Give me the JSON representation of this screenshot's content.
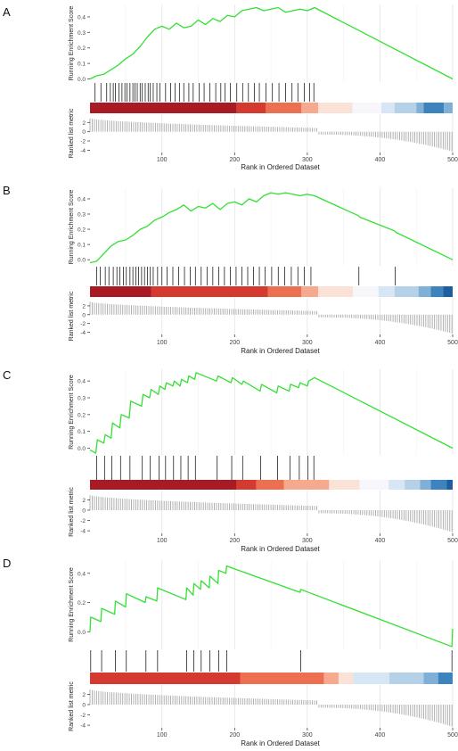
{
  "figure": {
    "panel_letters": [
      "A",
      "B",
      "C",
      "D"
    ],
    "es_ylabel": "Running Enrichment Score",
    "rank_ylabel": "Ranked list metric",
    "xlabel": "Rank in Ordered Dataset"
  },
  "colors": {
    "es_line": "#33e033",
    "hits": "#000000",
    "grid": "#e4e4e4",
    "metric_bars": "#a8a8a8",
    "red_dark": "#a81b25",
    "red": "#d43a30",
    "red_mid": "#ec6f52",
    "red_light": "#f6a98e",
    "neutral_light": "#fbe2d6",
    "white": "#f7f7fb",
    "blue_pale": "#d7e6f4",
    "blue_light": "#b5d1e8",
    "blue_mid": "#7fb0d7",
    "blue": "#3d84bf",
    "blue_dark": "#1e5e9e"
  },
  "chart_data": [
    {
      "type": "line",
      "panel": "A",
      "xlim": [
        1,
        500
      ],
      "ylim_es": [
        -0.02,
        0.48
      ],
      "y_ticks": [
        0.0,
        0.1,
        0.2,
        0.3,
        0.4
      ],
      "x_ticks": [
        100,
        200,
        300,
        400,
        500
      ],
      "rank_y_ticks": [
        2,
        0,
        -2,
        -4
      ],
      "xlabel": "Rank in Ordered Dataset",
      "ylabel_es": "Running Enrichment Score",
      "ylabel_rank": "Ranked list metric",
      "running_es": {
        "x": [
          1,
          10,
          20,
          30,
          40,
          50,
          60,
          70,
          80,
          90,
          100,
          110,
          120,
          130,
          140,
          150,
          160,
          170,
          180,
          190,
          200,
          210,
          220,
          230,
          240,
          250,
          260,
          270,
          280,
          290,
          300,
          310,
          500
        ],
        "y": [
          0.0,
          0.02,
          0.03,
          0.06,
          0.09,
          0.13,
          0.16,
          0.21,
          0.27,
          0.32,
          0.34,
          0.32,
          0.36,
          0.33,
          0.34,
          0.38,
          0.35,
          0.39,
          0.37,
          0.41,
          0.4,
          0.44,
          0.45,
          0.46,
          0.44,
          0.45,
          0.46,
          0.43,
          0.44,
          0.45,
          0.44,
          0.46,
          0.0
        ]
      },
      "hits": [
        8,
        16,
        24,
        29,
        33,
        36,
        41,
        45,
        49,
        52,
        56,
        60,
        63,
        66,
        70,
        73,
        77,
        81,
        84,
        88,
        93,
        97,
        105,
        112,
        118,
        124,
        130,
        137,
        143,
        151,
        158,
        166,
        174,
        181,
        187,
        194,
        203,
        211,
        219,
        227,
        234,
        243,
        252,
        261,
        270,
        279,
        287,
        296,
        303,
        309
      ],
      "heatmap": [
        {
          "from": 1,
          "to": 203,
          "color": "red_dark"
        },
        {
          "from": 203,
          "to": 243,
          "color": "red"
        },
        {
          "from": 243,
          "to": 292,
          "color": "red_mid"
        },
        {
          "from": 292,
          "to": 315,
          "color": "red_light"
        },
        {
          "from": 315,
          "to": 362,
          "color": "neutral_light"
        },
        {
          "from": 362,
          "to": 402,
          "color": "white"
        },
        {
          "from": 402,
          "to": 420,
          "color": "blue_pale"
        },
        {
          "from": 420,
          "to": 450,
          "color": "blue_light"
        },
        {
          "from": 450,
          "to": 460,
          "color": "blue_mid"
        },
        {
          "from": 460,
          "to": 488,
          "color": "blue"
        },
        {
          "from": 488,
          "to": 500,
          "color": "blue_mid"
        }
      ],
      "ranked_metric": {
        "pos_start": 3.0,
        "pos_end": 0.8,
        "split": 315,
        "neg_start": -0.6,
        "neg_end": -4.3,
        "ylim": [
          -4.5,
          3.8
        ]
      }
    },
    {
      "type": "line",
      "panel": "B",
      "xlim": [
        1,
        500
      ],
      "ylim_es": [
        -0.04,
        0.47
      ],
      "y_ticks": [
        0.0,
        0.1,
        0.2,
        0.3,
        0.4
      ],
      "x_ticks": [
        100,
        200,
        300,
        400,
        500
      ],
      "rank_y_ticks": [
        2,
        0,
        -2,
        -4
      ],
      "xlabel": "Rank in Ordered Dataset",
      "ylabel_es": "Running Enrichment Score",
      "ylabel_rank": "Ranked list metric",
      "running_es": {
        "x": [
          1,
          10,
          20,
          30,
          40,
          50,
          60,
          70,
          80,
          90,
          100,
          110,
          120,
          130,
          140,
          150,
          160,
          170,
          180,
          190,
          200,
          210,
          220,
          230,
          240,
          250,
          260,
          270,
          280,
          290,
          300,
          310,
          370,
          372,
          420,
          422,
          500
        ],
        "y": [
          -0.02,
          -0.01,
          0.04,
          0.09,
          0.12,
          0.13,
          0.16,
          0.2,
          0.22,
          0.26,
          0.28,
          0.31,
          0.33,
          0.36,
          0.32,
          0.35,
          0.34,
          0.37,
          0.33,
          0.37,
          0.38,
          0.36,
          0.4,
          0.38,
          0.42,
          0.44,
          0.43,
          0.44,
          0.43,
          0.42,
          0.43,
          0.42,
          0.29,
          0.28,
          0.19,
          0.18,
          0.0
        ]
      },
      "hits": [
        10,
        15,
        22,
        27,
        33,
        38,
        42,
        47,
        51,
        56,
        60,
        64,
        68,
        72,
        76,
        80,
        84,
        88,
        94,
        100,
        107,
        115,
        123,
        131,
        139,
        146,
        154,
        162,
        170,
        178,
        186,
        194,
        202,
        210,
        218,
        226,
        234,
        242,
        251,
        260,
        269,
        278,
        287,
        296,
        305,
        371,
        421
      ],
      "heatmap": [
        {
          "from": 1,
          "to": 85,
          "color": "red_dark"
        },
        {
          "from": 85,
          "to": 246,
          "color": "red"
        },
        {
          "from": 246,
          "to": 292,
          "color": "red_mid"
        },
        {
          "from": 292,
          "to": 315,
          "color": "red_light"
        },
        {
          "from": 315,
          "to": 363,
          "color": "neutral_light"
        },
        {
          "from": 363,
          "to": 398,
          "color": "white"
        },
        {
          "from": 398,
          "to": 420,
          "color": "blue_pale"
        },
        {
          "from": 420,
          "to": 453,
          "color": "blue_light"
        },
        {
          "from": 453,
          "to": 470,
          "color": "blue_mid"
        },
        {
          "from": 470,
          "to": 487,
          "color": "blue"
        },
        {
          "from": 487,
          "to": 500,
          "color": "blue_dark"
        }
      ],
      "ranked_metric": {
        "pos_start": 3.0,
        "pos_end": 0.8,
        "split": 315,
        "neg_start": -0.6,
        "neg_end": -4.3,
        "ylim": [
          -4.5,
          3.8
        ]
      }
    },
    {
      "type": "line",
      "panel": "C",
      "xlim": [
        1,
        500
      ],
      "ylim_es": [
        -0.04,
        0.47
      ],
      "y_ticks": [
        0.0,
        0.1,
        0.2,
        0.3,
        0.4
      ],
      "x_ticks": [
        100,
        200,
        300,
        400,
        500
      ],
      "rank_y_ticks": [
        2,
        0,
        -2,
        -4
      ],
      "xlabel": "Rank in Ordered Dataset",
      "ylabel_es": "Running Enrichment Score",
      "ylabel_rank": "Ranked list metric",
      "running_es": {
        "x": [
          1,
          9,
          11,
          20,
          22,
          30,
          32,
          42,
          44,
          55,
          57,
          72,
          74,
          83,
          85,
          95,
          97,
          104,
          106,
          115,
          117,
          125,
          127,
          135,
          137,
          145,
          147,
          175,
          177,
          195,
          197,
          210,
          212,
          235,
          237,
          258,
          260,
          275,
          277,
          288,
          290,
          300,
          302,
          310,
          500
        ],
        "y": [
          -0.01,
          -0.03,
          0.05,
          0.03,
          0.08,
          0.06,
          0.15,
          0.12,
          0.2,
          0.18,
          0.28,
          0.25,
          0.32,
          0.3,
          0.35,
          0.32,
          0.37,
          0.35,
          0.39,
          0.37,
          0.4,
          0.37,
          0.41,
          0.39,
          0.43,
          0.41,
          0.45,
          0.4,
          0.43,
          0.39,
          0.42,
          0.38,
          0.4,
          0.34,
          0.38,
          0.33,
          0.37,
          0.34,
          0.38,
          0.36,
          0.39,
          0.37,
          0.4,
          0.42,
          0.0
        ]
      },
      "hits": [
        10,
        21,
        31,
        43,
        56,
        73,
        84,
        96,
        105,
        116,
        126,
        136,
        146,
        176,
        196,
        211,
        236,
        259,
        276,
        289,
        301,
        309
      ],
      "heatmap": [
        {
          "from": 1,
          "to": 203,
          "color": "red_dark"
        },
        {
          "from": 203,
          "to": 230,
          "color": "red"
        },
        {
          "from": 230,
          "to": 268,
          "color": "red_mid"
        },
        {
          "from": 268,
          "to": 330,
          "color": "red_light"
        },
        {
          "from": 330,
          "to": 372,
          "color": "neutral_light"
        },
        {
          "from": 372,
          "to": 412,
          "color": "white"
        },
        {
          "from": 412,
          "to": 434,
          "color": "blue_pale"
        },
        {
          "from": 434,
          "to": 455,
          "color": "blue_light"
        },
        {
          "from": 455,
          "to": 470,
          "color": "blue_mid"
        },
        {
          "from": 470,
          "to": 492,
          "color": "blue"
        },
        {
          "from": 492,
          "to": 500,
          "color": "blue_dark"
        }
      ],
      "ranked_metric": {
        "pos_start": 3.0,
        "pos_end": 0.8,
        "split": 315,
        "neg_start": -0.6,
        "neg_end": -4.3,
        "ylim": [
          -4.5,
          3.8
        ]
      }
    },
    {
      "type": "line",
      "panel": "D",
      "xlim": [
        1,
        500
      ],
      "ylim_es": [
        -0.12,
        0.49
      ],
      "y_ticks": [
        0.0,
        0.2,
        0.4
      ],
      "x_ticks": [
        100,
        200,
        300,
        400,
        500
      ],
      "rank_y_ticks": [
        2,
        0,
        -2,
        -4
      ],
      "xlabel": "Rank in Ordered Dataset",
      "ylabel_es": "Running Enrichment Score",
      "ylabel_rank": "Ranked list metric",
      "running_es": {
        "x": [
          1,
          2,
          16,
          17,
          35,
          36,
          50,
          51,
          77,
          78,
          93,
          94,
          133,
          134,
          143,
          144,
          153,
          154,
          165,
          166,
          177,
          178,
          188,
          189,
          290,
          291,
          498,
          499,
          500
        ],
        "y": [
          0.0,
          0.1,
          0.07,
          0.16,
          0.12,
          0.21,
          0.17,
          0.26,
          0.2,
          0.24,
          0.21,
          0.3,
          0.22,
          0.3,
          0.25,
          0.33,
          0.29,
          0.35,
          0.3,
          0.38,
          0.33,
          0.42,
          0.4,
          0.45,
          0.27,
          0.29,
          -0.1,
          -0.1,
          0.02
        ]
      },
      "hits": [
        2,
        17,
        36,
        51,
        78,
        94,
        134,
        144,
        154,
        166,
        178,
        189,
        291,
        499
      ],
      "heatmap": [
        {
          "from": 1,
          "to": 208,
          "color": "red"
        },
        {
          "from": 208,
          "to": 323,
          "color": "red_mid"
        },
        {
          "from": 323,
          "to": 343,
          "color": "red_light"
        },
        {
          "from": 343,
          "to": 363,
          "color": "neutral_light"
        },
        {
          "from": 363,
          "to": 413,
          "color": "blue_pale"
        },
        {
          "from": 413,
          "to": 460,
          "color": "blue_light"
        },
        {
          "from": 460,
          "to": 480,
          "color": "blue_mid"
        },
        {
          "from": 480,
          "to": 500,
          "color": "blue"
        }
      ],
      "ranked_metric": {
        "pos_start": 3.0,
        "pos_end": 0.8,
        "split": 315,
        "neg_start": -0.6,
        "neg_end": -4.3,
        "ylim": [
          -4.5,
          3.8
        ]
      }
    }
  ]
}
